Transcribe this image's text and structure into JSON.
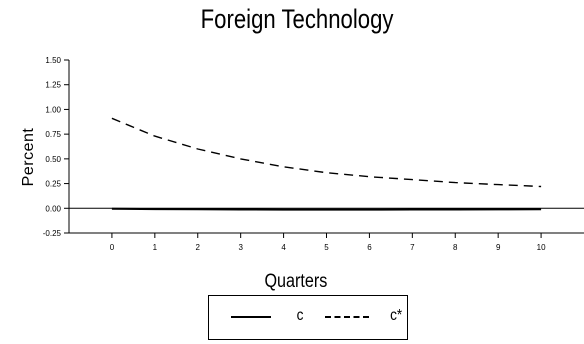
{
  "chart_data": {
    "type": "line",
    "title": "Foreign Technology",
    "xlabel": "Quarters",
    "ylabel": "Percent",
    "x": [
      0,
      1,
      2,
      3,
      4,
      5,
      6,
      7,
      8,
      9,
      10
    ],
    "xlim": [
      -1,
      11
    ],
    "ylim": [
      -0.25,
      1.5
    ],
    "yticks": [
      "1.50",
      "1.25",
      "1.00",
      "0.75",
      "0.50",
      "0.25",
      "0.00",
      "-0.25"
    ],
    "ytick_values": [
      1.5,
      1.25,
      1.0,
      0.75,
      0.5,
      0.25,
      0.0,
      -0.25
    ],
    "xticks": [
      "0",
      "1",
      "2",
      "3",
      "4",
      "5",
      "6",
      "7",
      "8",
      "9",
      "10"
    ],
    "grid": false,
    "legend_position": "bottom-center",
    "series": [
      {
        "name": "c",
        "style": "solid",
        "color": "#000000",
        "values": [
          -0.005,
          -0.008,
          -0.01,
          -0.012,
          -0.013,
          -0.013,
          -0.013,
          -0.012,
          -0.012,
          -0.011,
          -0.01
        ]
      },
      {
        "name": "c*",
        "style": "dashed",
        "color": "#000000",
        "values": [
          0.91,
          0.73,
          0.6,
          0.5,
          0.42,
          0.36,
          0.32,
          0.29,
          0.26,
          0.24,
          0.22
        ]
      }
    ]
  }
}
